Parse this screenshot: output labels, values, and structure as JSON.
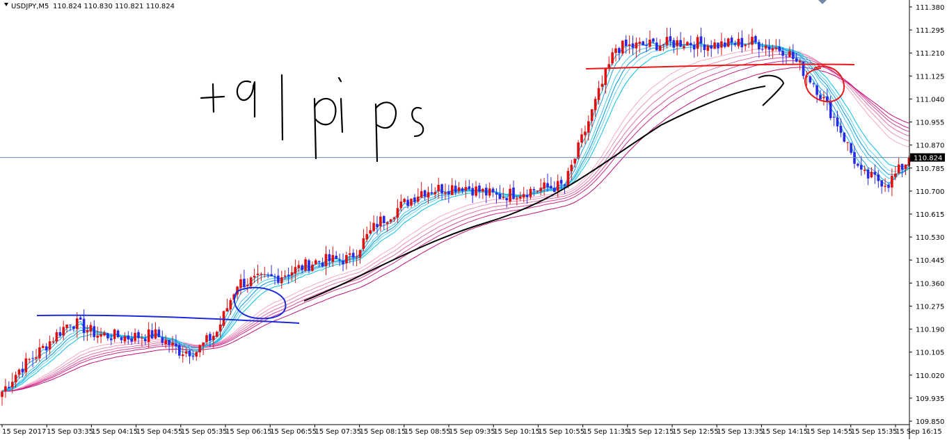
{
  "header": {
    "symbol_timeframe": "USDJPY,M5",
    "ohlc": "110.824 110.830 110.821 110.824"
  },
  "current_price_label": "110.824",
  "annotation_text": "+91pips",
  "colors": {
    "bull_candle": "#e01010",
    "bear_candle": "#2a2ae0",
    "ribbon_fast": [
      "#00b4f0",
      "#1ea0e0",
      "#40c8f0",
      "#0096dc",
      "#66d2f0",
      "#00c0e8"
    ],
    "ribbon_slow": [
      "#f4a8c8",
      "#ec90b8",
      "#e070a8",
      "#d84898",
      "#cc2888",
      "#c01078"
    ],
    "price_line": "#6e8aa8",
    "hand_blue": "#1c2ad8",
    "hand_red": "#e81818",
    "hand_black": "#000000"
  },
  "chart_data": {
    "type": "candlestick",
    "title": "USDJPY,M5",
    "ylim": [
      109.82,
      111.42
    ],
    "y_ticks": [
      "111.380",
      "111.295",
      "111.210",
      "111.125",
      "111.040",
      "110.955",
      "110.870",
      "110.785",
      "110.700",
      "110.615",
      "110.530",
      "110.445",
      "110.360",
      "110.275",
      "110.190",
      "110.105",
      "110.020",
      "109.935",
      "109.850"
    ],
    "x_ticks": [
      "15 Sep 2017",
      "15 Sep 03:35",
      "15 Sep 04:15",
      "15 Sep 04:55",
      "15 Sep 05:35",
      "15 Sep 06:15",
      "15 Sep 06:55",
      "15 Sep 07:35",
      "15 Sep 08:15",
      "15 Sep 08:55",
      "15 Sep 09:35",
      "15 Sep 10:15",
      "15 Sep 10:55",
      "15 Sep 11:35",
      "15 Sep 12:15",
      "15 Sep 12:55",
      "15 Sep 13:35",
      "15 Sep 14:15",
      "15 Sep 14:55",
      "15 Sep 15:35",
      "15 Sep 16:15"
    ],
    "close_path": [
      [
        0,
        109.96
      ],
      [
        5,
        110.04
      ],
      [
        12,
        110.12
      ],
      [
        20,
        110.22
      ],
      [
        28,
        110.17
      ],
      [
        37,
        110.16
      ],
      [
        45,
        110.17
      ],
      [
        52,
        110.11
      ],
      [
        57,
        110.11
      ],
      [
        63,
        110.18
      ],
      [
        69,
        110.36
      ],
      [
        80,
        110.38
      ],
      [
        92,
        110.44
      ],
      [
        102,
        110.45
      ],
      [
        110,
        110.58
      ],
      [
        123,
        110.7
      ],
      [
        135,
        110.72
      ],
      [
        145,
        110.68
      ],
      [
        158,
        110.71
      ],
      [
        165,
        110.72
      ],
      [
        180,
        111.23
      ],
      [
        190,
        111.24
      ],
      [
        200,
        111.25
      ],
      [
        210,
        111.24
      ],
      [
        220,
        111.25
      ],
      [
        230,
        111.22
      ],
      [
        238,
        111.1
      ],
      [
        245,
        110.95
      ],
      [
        252,
        110.76
      ],
      [
        260,
        110.73
      ],
      [
        266,
        110.82
      ]
    ],
    "last_close": 110.824
  }
}
